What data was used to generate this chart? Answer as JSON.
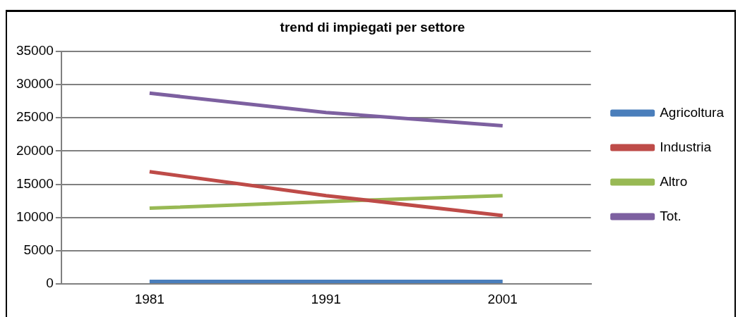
{
  "chart_data": {
    "type": "line",
    "title": "trend di impiegati per settore",
    "categories": [
      "1981",
      "1991",
      "2001"
    ],
    "series": [
      {
        "name": "Agricoltura",
        "color": "#4a7ebb",
        "values": [
          400,
          400,
          400
        ]
      },
      {
        "name": "Industria",
        "color": "#be4b48",
        "values": [
          16900,
          13300,
          10300
        ]
      },
      {
        "name": "Altro",
        "color": "#98b954",
        "values": [
          11400,
          12400,
          13300
        ]
      },
      {
        "name": "Tot.",
        "color": "#7d60a0",
        "values": [
          28700,
          25800,
          23800
        ]
      }
    ],
    "ylim": [
      0,
      35000
    ],
    "yticks": [
      0,
      5000,
      10000,
      15000,
      20000,
      25000,
      30000,
      35000
    ],
    "grid": "y",
    "legend": "right",
    "marker": "none"
  }
}
